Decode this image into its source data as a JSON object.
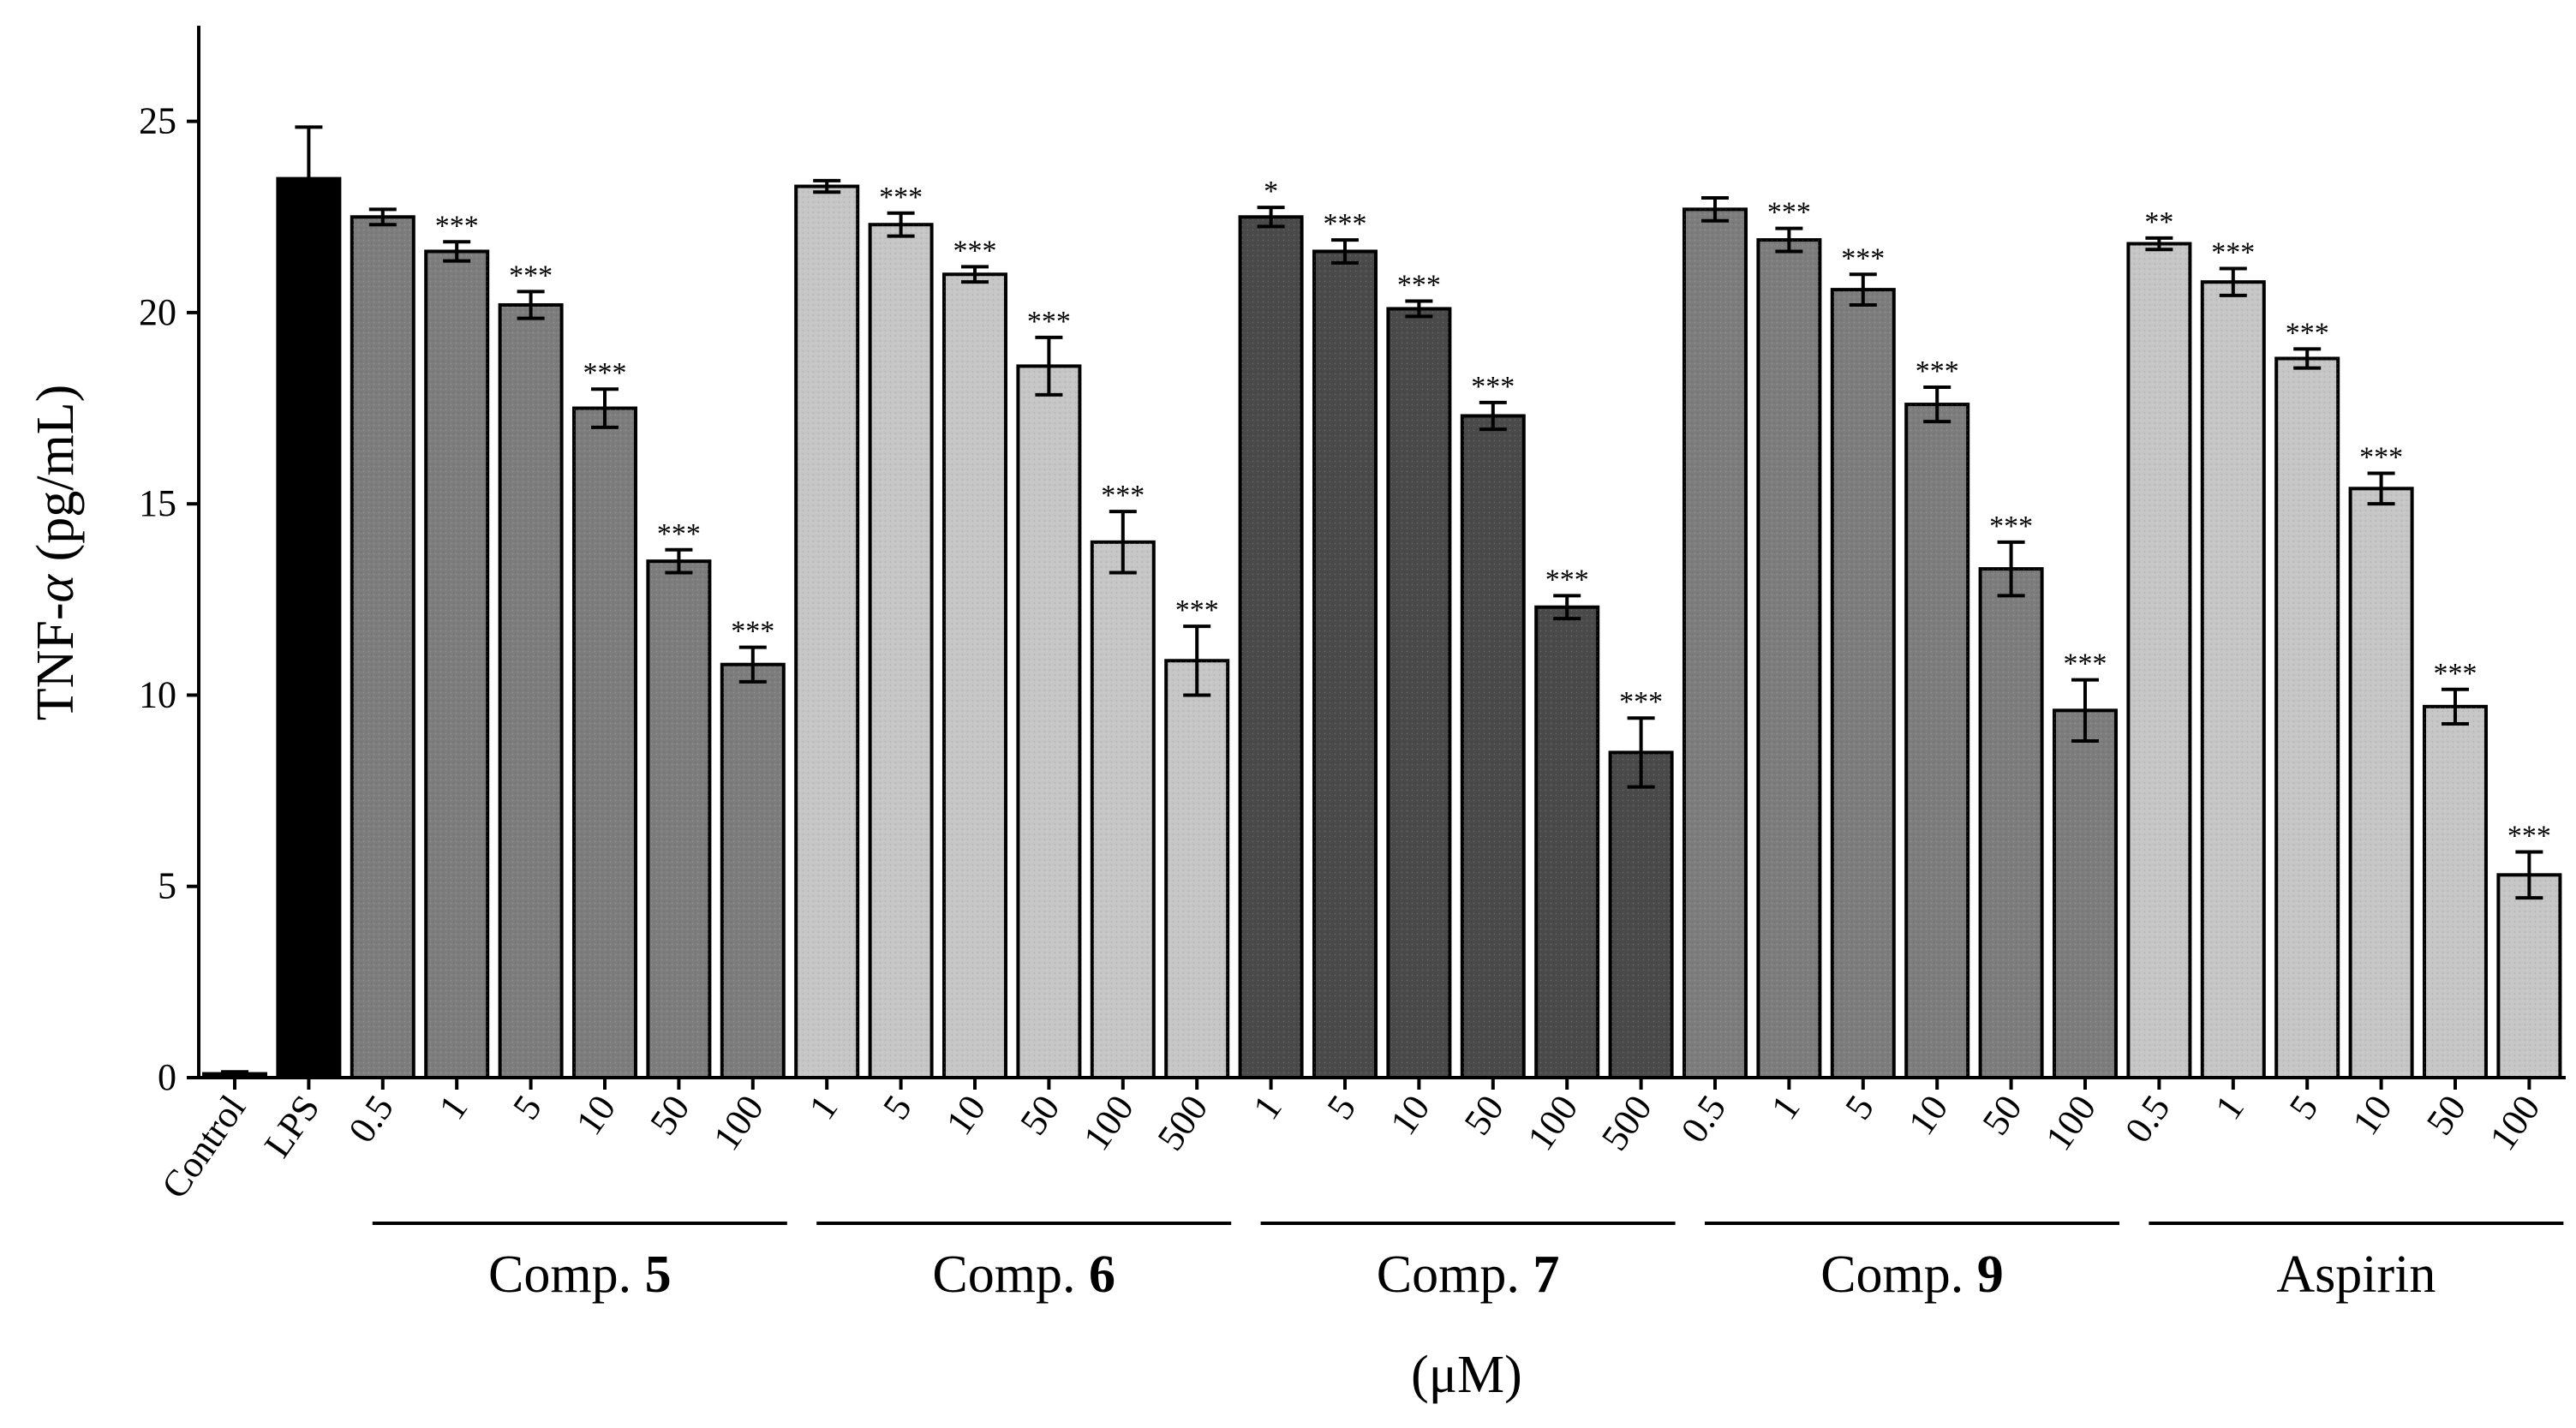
{
  "chart_data": {
    "type": "bar",
    "ylabel_prefix": "TNF-",
    "ylabel_symbol": "α",
    "ylabel_unit": " (pg/mL)",
    "xlabel": "(μM)",
    "ylim": [
      0,
      27.5
    ],
    "yticks": [
      0,
      5,
      10,
      15,
      20,
      25
    ],
    "colors": {
      "black": "#000000",
      "medium": "#7d7d7d",
      "light": "#c6c6c6",
      "dark": "#4a4a4a"
    },
    "bars": [
      {
        "label": "Control",
        "value": 0.1,
        "err": 0.05,
        "sig": "",
        "color": "black",
        "group": -1
      },
      {
        "label": "LPS",
        "value": 23.5,
        "err": 1.35,
        "sig": "",
        "color": "black",
        "group": -1
      },
      {
        "label": "0.5",
        "value": 22.5,
        "err": 0.2,
        "sig": "",
        "color": "medium",
        "group": 0
      },
      {
        "label": "1",
        "value": 21.6,
        "err": 0.25,
        "sig": "***",
        "color": "medium",
        "group": 0
      },
      {
        "label": "5",
        "value": 20.2,
        "err": 0.35,
        "sig": "***",
        "color": "medium",
        "group": 0
      },
      {
        "label": "10",
        "value": 17.5,
        "err": 0.5,
        "sig": "***",
        "color": "medium",
        "group": 0
      },
      {
        "label": "50",
        "value": 13.5,
        "err": 0.3,
        "sig": "***",
        "color": "medium",
        "group": 0
      },
      {
        "label": "100",
        "value": 10.8,
        "err": 0.45,
        "sig": "***",
        "color": "medium",
        "group": 0
      },
      {
        "label": "1",
        "value": 23.3,
        "err": 0.15,
        "sig": "",
        "color": "light",
        "group": 1
      },
      {
        "label": "5",
        "value": 22.3,
        "err": 0.3,
        "sig": "***",
        "color": "light",
        "group": 1
      },
      {
        "label": "10",
        "value": 21.0,
        "err": 0.2,
        "sig": "***",
        "color": "light",
        "group": 1
      },
      {
        "label": "50",
        "value": 18.6,
        "err": 0.75,
        "sig": "***",
        "color": "light",
        "group": 1
      },
      {
        "label": "100",
        "value": 14.0,
        "err": 0.8,
        "sig": "***",
        "color": "light",
        "group": 1
      },
      {
        "label": "500",
        "value": 10.9,
        "err": 0.9,
        "sig": "***",
        "color": "light",
        "group": 1
      },
      {
        "label": "1",
        "value": 22.5,
        "err": 0.25,
        "sig": "*",
        "color": "dark",
        "group": 2
      },
      {
        "label": "5",
        "value": 21.6,
        "err": 0.3,
        "sig": "***",
        "color": "dark",
        "group": 2
      },
      {
        "label": "10",
        "value": 20.1,
        "err": 0.2,
        "sig": "***",
        "color": "dark",
        "group": 2
      },
      {
        "label": "50",
        "value": 17.3,
        "err": 0.35,
        "sig": "***",
        "color": "dark",
        "group": 2
      },
      {
        "label": "100",
        "value": 12.3,
        "err": 0.3,
        "sig": "***",
        "color": "dark",
        "group": 2
      },
      {
        "label": "500",
        "value": 8.5,
        "err": 0.9,
        "sig": "***",
        "color": "dark",
        "group": 2
      },
      {
        "label": "0.5",
        "value": 22.7,
        "err": 0.3,
        "sig": "",
        "color": "medium",
        "group": 3
      },
      {
        "label": "1",
        "value": 21.9,
        "err": 0.3,
        "sig": "***",
        "color": "medium",
        "group": 3
      },
      {
        "label": "5",
        "value": 20.6,
        "err": 0.4,
        "sig": "***",
        "color": "medium",
        "group": 3
      },
      {
        "label": "10",
        "value": 17.6,
        "err": 0.45,
        "sig": "***",
        "color": "medium",
        "group": 3
      },
      {
        "label": "50",
        "value": 13.3,
        "err": 0.7,
        "sig": "***",
        "color": "medium",
        "group": 3
      },
      {
        "label": "100",
        "value": 9.6,
        "err": 0.8,
        "sig": "***",
        "color": "medium",
        "group": 3
      },
      {
        "label": "0.5",
        "value": 21.8,
        "err": 0.15,
        "sig": "**",
        "color": "light",
        "group": 4
      },
      {
        "label": "1",
        "value": 20.8,
        "err": 0.35,
        "sig": "***",
        "color": "light",
        "group": 4
      },
      {
        "label": "5",
        "value": 18.8,
        "err": 0.25,
        "sig": "***",
        "color": "light",
        "group": 4
      },
      {
        "label": "10",
        "value": 15.4,
        "err": 0.4,
        "sig": "***",
        "color": "light",
        "group": 4
      },
      {
        "label": "50",
        "value": 9.7,
        "err": 0.45,
        "sig": "***",
        "color": "light",
        "group": 4
      },
      {
        "label": "100",
        "value": 5.3,
        "err": 0.6,
        "sig": "***",
        "color": "light",
        "group": 4
      }
    ],
    "groups": [
      {
        "name": "Comp. ",
        "bold": "5"
      },
      {
        "name": "Comp. ",
        "bold": "6"
      },
      {
        "name": "Comp. ",
        "bold": "7"
      },
      {
        "name": "Comp. ",
        "bold": "9"
      },
      {
        "name": "Aspirin",
        "bold": ""
      }
    ]
  }
}
